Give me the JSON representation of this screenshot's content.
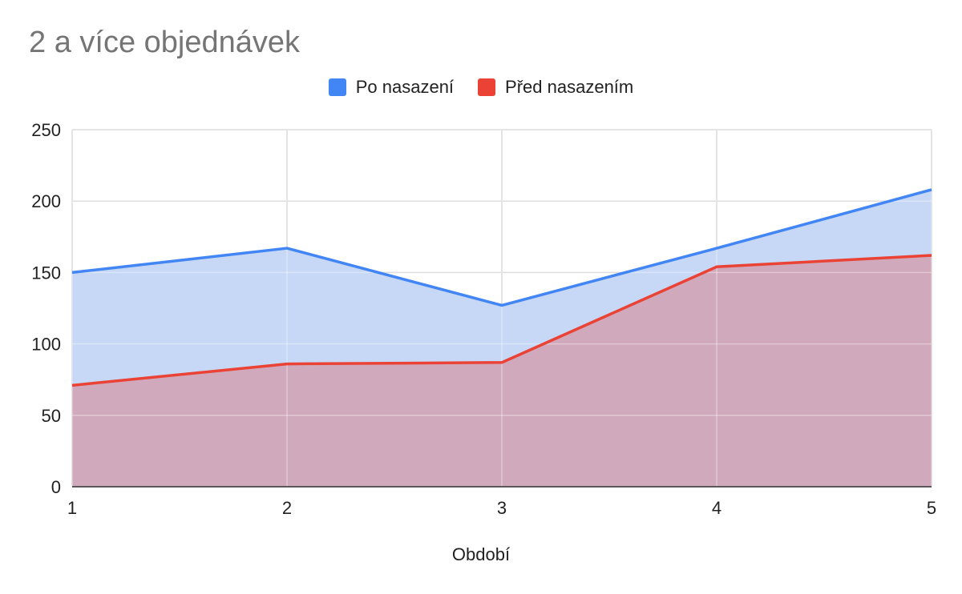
{
  "chart_data": {
    "type": "area",
    "title": "2 a více objednávek",
    "xlabel": "Období",
    "ylabel": "",
    "x": [
      1,
      2,
      3,
      4,
      5
    ],
    "x_tick_labels": [
      "1",
      "2",
      "3",
      "4",
      "5"
    ],
    "ylim": [
      0,
      250
    ],
    "y_ticks": [
      0,
      50,
      100,
      150,
      200,
      250
    ],
    "grid": true,
    "legend_position": "top",
    "series": [
      {
        "name": "Po nasazení",
        "color": "#4285f4",
        "fill": "#c6d8f6",
        "values": [
          150,
          167,
          127,
          167,
          208
        ]
      },
      {
        "name": "Před nasazením",
        "color": "#ea4335",
        "fill": "#d1a9bc",
        "values": [
          71,
          86,
          87,
          154,
          162
        ]
      }
    ]
  }
}
